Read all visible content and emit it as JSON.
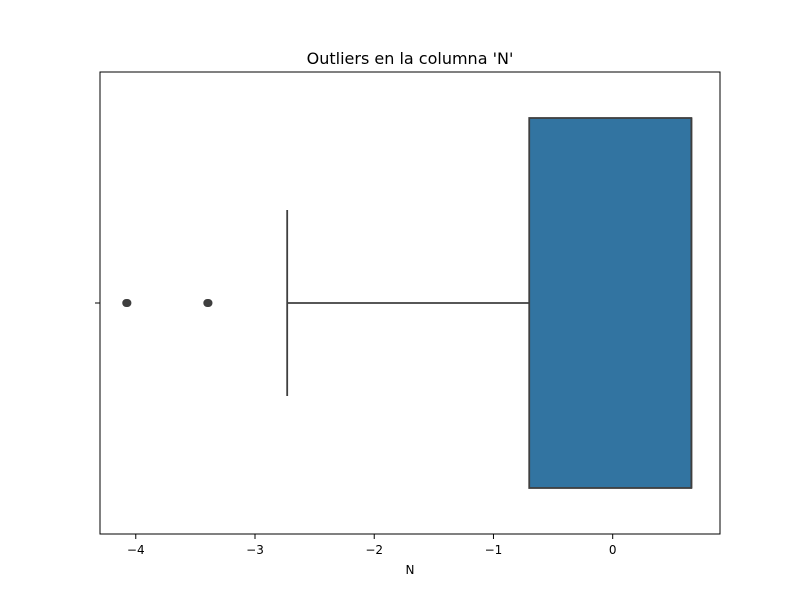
{
  "chart_data": {
    "type": "box",
    "title": "Outliers en la columna 'N'",
    "xlabel": "N",
    "ylabel": "",
    "xlim": [
      -4.3,
      0.9
    ],
    "xticks": [
      -4,
      -3,
      -2,
      -1,
      0
    ],
    "xtick_labels": [
      "−4",
      "−3",
      "−2",
      "−1",
      "0"
    ],
    "grid": false,
    "orientation": "horizontal",
    "box": {
      "whisker_low": -2.73,
      "q1": -0.7,
      "median": 0.66,
      "q3": 0.66,
      "whisker_high": 0.66
    },
    "outliers": [
      -4.08,
      -4.07,
      -3.4,
      -3.39
    ],
    "colors": {
      "box_fill": "#3274a1",
      "line": "#3f3f3f",
      "outlier": "#3f3f3f"
    }
  }
}
